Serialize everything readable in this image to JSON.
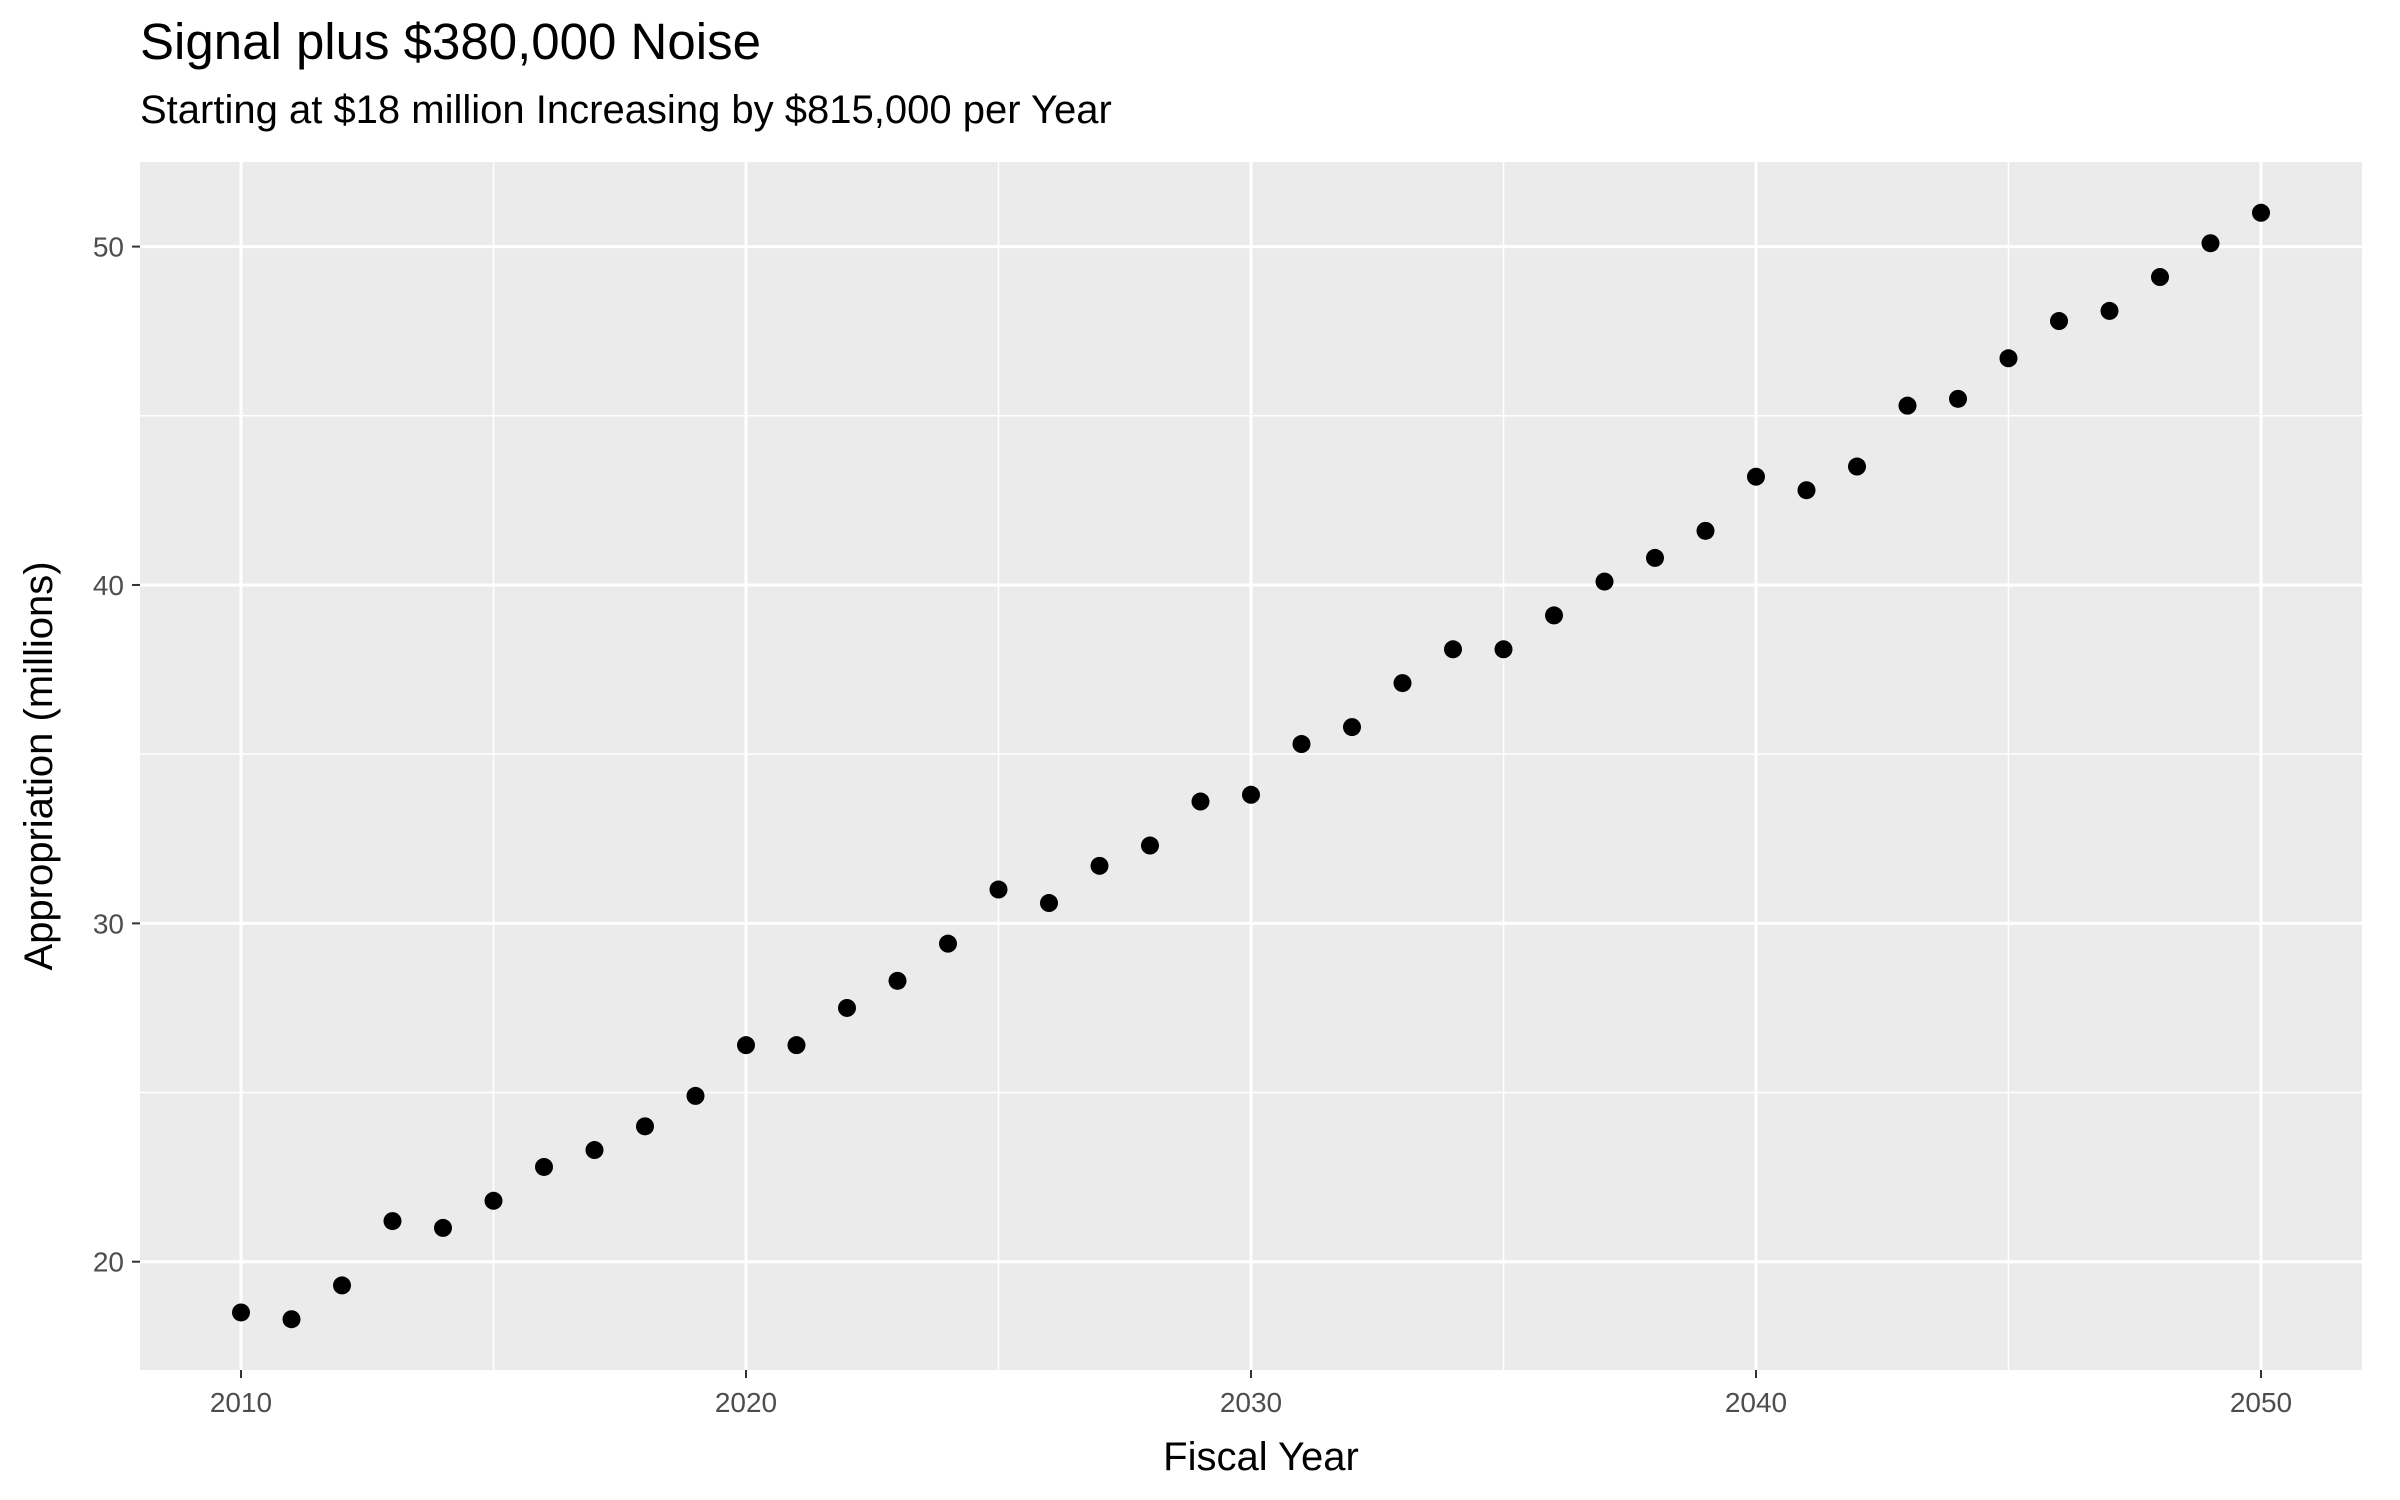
{
  "chart_data": {
    "type": "scatter",
    "title": "Signal plus $380,000 Noise",
    "subtitle": "Starting at $18 million Increasing by $815,000 per Year",
    "xlabel": "Fiscal Year",
    "ylabel": "Appropriation (millions)",
    "xlim": [
      2008,
      2052
    ],
    "ylim": [
      16.8,
      52.5
    ],
    "x_ticks": [
      2010,
      2020,
      2030,
      2040,
      2050
    ],
    "y_ticks": [
      20,
      30,
      40,
      50
    ],
    "grid": true,
    "legend": "none",
    "colors": {
      "panel": "#ebebeb",
      "grid": "#ffffff",
      "point": "#000000",
      "tick_text": "#4d4d4d"
    },
    "x": [
      2010,
      2011,
      2012,
      2013,
      2014,
      2015,
      2016,
      2017,
      2018,
      2019,
      2020,
      2021,
      2022,
      2023,
      2024,
      2025,
      2026,
      2027,
      2028,
      2029,
      2030,
      2031,
      2032,
      2033,
      2034,
      2035,
      2036,
      2037,
      2038,
      2039,
      2040,
      2041,
      2042,
      2043,
      2044,
      2045,
      2046,
      2047,
      2048,
      2049,
      2050
    ],
    "y": [
      18.5,
      18.3,
      19.3,
      21.2,
      21.0,
      21.8,
      22.8,
      23.3,
      24.0,
      24.9,
      26.4,
      26.4,
      27.5,
      28.3,
      29.4,
      31.0,
      30.6,
      31.7,
      32.3,
      33.6,
      33.8,
      35.3,
      35.8,
      37.1,
      38.1,
      38.1,
      39.1,
      40.1,
      40.8,
      41.6,
      43.2,
      42.8,
      43.5,
      45.3,
      45.5,
      46.7,
      47.8,
      48.1,
      49.1,
      50.1,
      51.0
    ]
  }
}
